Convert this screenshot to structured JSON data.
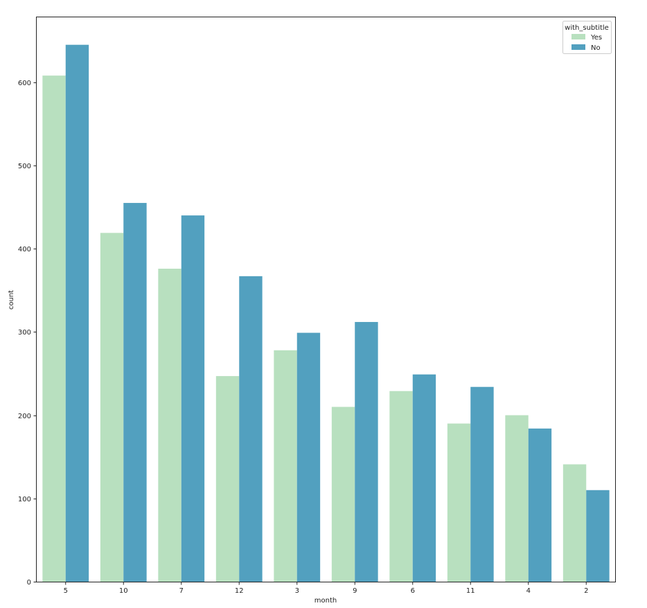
{
  "chart_data": {
    "type": "bar",
    "xlabel": "month",
    "ylabel": "count",
    "categories": [
      "5",
      "10",
      "7",
      "12",
      "3",
      "9",
      "6",
      "11",
      "4",
      "2"
    ],
    "series": [
      {
        "name": "Yes",
        "color": "#b8e0bf",
        "values": [
          608,
          419,
          376,
          247,
          278,
          210,
          229,
          190,
          200,
          141
        ]
      },
      {
        "name": "No",
        "color": "#52a0bf",
        "values": [
          645,
          455,
          440,
          367,
          299,
          312,
          249,
          234,
          184,
          110
        ]
      }
    ],
    "ylim": [
      0,
      678
    ],
    "yticks": [
      0,
      100,
      200,
      300,
      400,
      500,
      600
    ],
    "grid": false,
    "legend": {
      "title": "with_subtitle",
      "placement": "top-right"
    }
  }
}
